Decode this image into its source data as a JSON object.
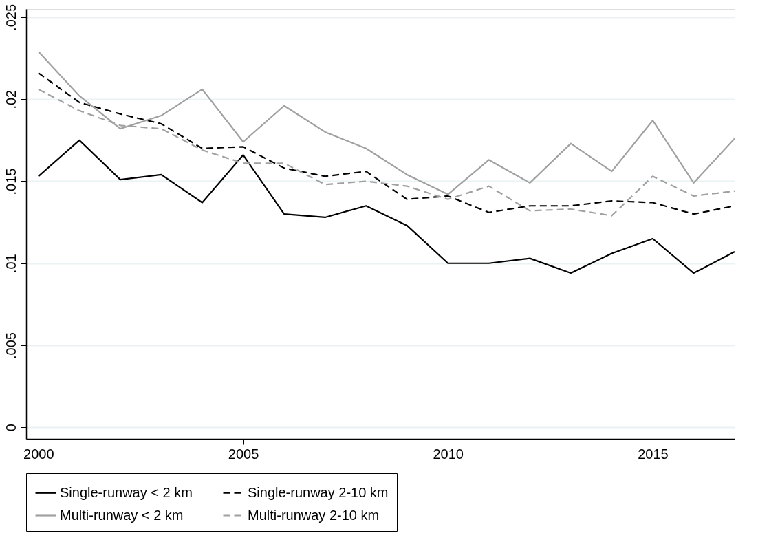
{
  "chart_data": {
    "type": "line",
    "x": [
      2000,
      2001,
      2002,
      2003,
      2004,
      2005,
      2006,
      2007,
      2008,
      2009,
      2010,
      2011,
      2012,
      2013,
      2014,
      2015,
      2016,
      2017
    ],
    "series": [
      {
        "name": "Single-runway < 2 km",
        "color": "#000000",
        "line_style": "solid",
        "values": [
          0.0153,
          0.0175,
          0.0151,
          0.0154,
          0.0137,
          0.0166,
          0.013,
          0.0128,
          0.0135,
          0.0123,
          0.01,
          0.01,
          0.0103,
          0.0094,
          0.0106,
          0.0115,
          0.0094,
          0.0107
        ]
      },
      {
        "name": "Single-runway 2-10 km",
        "color": "#000000",
        "line_style": "dashed",
        "values": [
          0.0216,
          0.0198,
          0.0191,
          0.0185,
          0.017,
          0.0171,
          0.0158,
          0.0153,
          0.0156,
          0.0139,
          0.0141,
          0.0131,
          0.0135,
          0.0135,
          0.0138,
          0.0137,
          0.013,
          0.0135
        ]
      },
      {
        "name": "Multi-runway < 2 km",
        "color": "#a0a0a0",
        "line_style": "solid",
        "values": [
          0.0229,
          0.0202,
          0.0182,
          0.019,
          0.0206,
          0.0174,
          0.0196,
          0.018,
          0.017,
          0.0154,
          0.0142,
          0.0163,
          0.0149,
          0.0173,
          0.0156,
          0.0187,
          0.0149,
          0.0176
        ]
      },
      {
        "name": "Multi-runway 2-10 km",
        "color": "#a0a0a0",
        "line_style": "dashed",
        "values": [
          0.0206,
          0.0193,
          0.0184,
          0.0182,
          0.0169,
          0.0161,
          0.0161,
          0.0148,
          0.015,
          0.0147,
          0.0139,
          0.0147,
          0.0132,
          0.0133,
          0.0129,
          0.0153,
          0.0141,
          0.0144
        ]
      }
    ],
    "xlim": [
      1999.7,
      2017
    ],
    "xticks": [
      2000,
      2005,
      2010,
      2015
    ],
    "ylim": [
      -0.0007,
      0.0255
    ],
    "yticks": [
      0,
      {
        "value": 0.005,
        "label": ".005"
      },
      {
        "value": 0.01,
        "label": ".01"
      },
      {
        "value": 0.015,
        "label": ".015"
      },
      {
        "value": 0.02,
        "label": ".02"
      },
      {
        "value": 0.025,
        "label": ".025"
      }
    ],
    "grid": "y",
    "legend": "bottom",
    "marker": "none"
  }
}
